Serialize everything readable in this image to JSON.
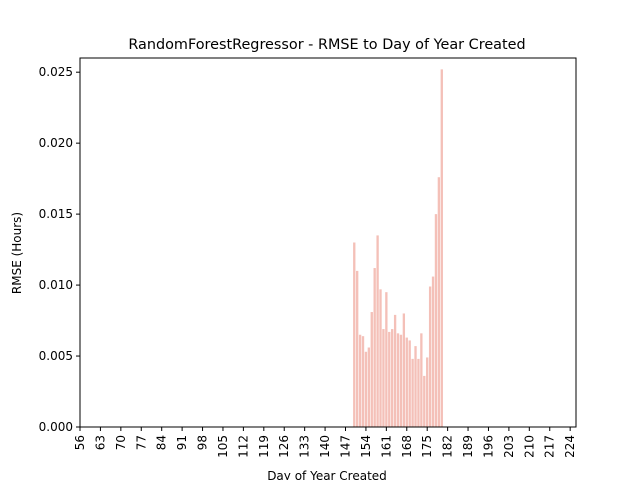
{
  "chart_data": {
    "type": "bar",
    "title": "RandomForestRegressor - RMSE to Day of Year Created",
    "xlabel": "Day of Year Created",
    "ylabel": "RMSE (Hours)",
    "xlim": [
      56,
      226
    ],
    "ylim": [
      0,
      0.026
    ],
    "x_ticks": [
      56,
      63,
      70,
      77,
      84,
      91,
      98,
      105,
      112,
      119,
      126,
      133,
      140,
      147,
      154,
      161,
      168,
      175,
      182,
      189,
      196,
      203,
      210,
      217,
      224
    ],
    "y_ticks": [
      "0.000",
      "0.005",
      "0.010",
      "0.015",
      "0.020",
      "0.025"
    ],
    "y_tick_values": [
      0,
      0.005,
      0.01,
      0.015,
      0.02,
      0.025
    ],
    "bar_color": "#f4c0b8",
    "grid": false,
    "x": [
      150,
      151,
      152,
      153,
      154,
      155,
      156,
      157,
      158,
      159,
      160,
      161,
      162,
      163,
      164,
      165,
      166,
      167,
      168,
      169,
      170,
      171,
      172,
      173,
      174,
      175,
      176,
      177,
      178,
      179,
      180,
      181
    ],
    "values": [
      0.013,
      0.011,
      0.0065,
      0.0064,
      0.0053,
      0.0056,
      0.0081,
      0.0112,
      0.0135,
      0.0097,
      0.0069,
      0.0095,
      0.0067,
      0.0069,
      0.0079,
      0.0066,
      0.0065,
      0.008,
      0.0063,
      0.0061,
      0.0048,
      0.0057,
      0.0048,
      0.0066,
      0.0036,
      0.0049,
      0.0099,
      0.0106,
      0.015,
      0.0176,
      0.0252,
      0.0
    ]
  }
}
